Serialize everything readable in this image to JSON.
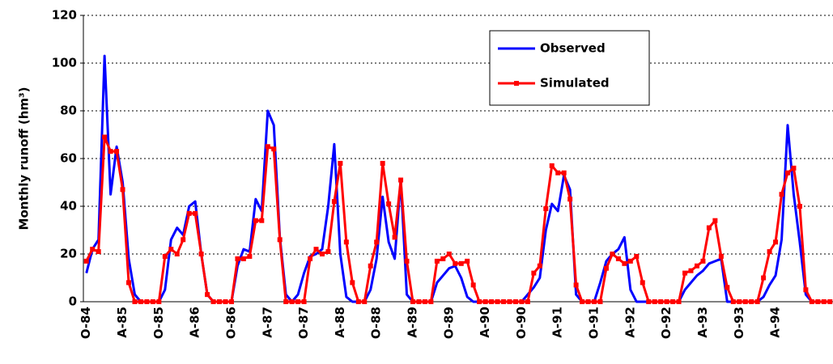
{
  "chart_data": {
    "type": "line",
    "y_label": "Monthly runoff (hm³)",
    "categories": [
      "O-84",
      null,
      null,
      null,
      null,
      null,
      "A-85",
      null,
      null,
      null,
      null,
      null,
      "O-85",
      null,
      null,
      null,
      null,
      null,
      "A-86",
      null,
      null,
      null,
      null,
      null,
      "O-86",
      null,
      null,
      null,
      null,
      null,
      "A-87",
      null,
      null,
      null,
      null,
      null,
      "O-87",
      null,
      null,
      null,
      null,
      null,
      "A-88",
      null,
      null,
      null,
      null,
      null,
      "O-88",
      null,
      null,
      null,
      null,
      null,
      "A-89",
      null,
      null,
      null,
      null,
      null,
      "O-89",
      null,
      null,
      null,
      null,
      null,
      "A-90",
      null,
      null,
      null,
      null,
      null,
      "O-90",
      null,
      null,
      null,
      null,
      null,
      "A-91",
      null,
      null,
      null,
      null,
      null,
      "O-91",
      null,
      null,
      null,
      null,
      null,
      "A-92",
      null,
      null,
      null,
      null,
      null,
      "O-92",
      null,
      null,
      null,
      null,
      null,
      "A-93",
      null,
      null,
      null,
      null,
      null,
      "O-93",
      null,
      null,
      null,
      null,
      null,
      "A-94",
      null,
      null,
      null,
      null,
      null,
      null,
      null,
      null,
      null
    ],
    "series": [
      {
        "name": "Observed",
        "color": "#0000ff",
        "marker": "none",
        "values": [
          12,
          22,
          26,
          103,
          45,
          65,
          50,
          18,
          3,
          0,
          0,
          0,
          0,
          5,
          26,
          31,
          28,
          40,
          42,
          20,
          3,
          0,
          0,
          0,
          0,
          15,
          22,
          21,
          43,
          38,
          80,
          74,
          27,
          3,
          0,
          3,
          12,
          19,
          20,
          22,
          40,
          66,
          20,
          2,
          0,
          0,
          0,
          5,
          18,
          44,
          25,
          18,
          51,
          3,
          0,
          0,
          0,
          0,
          8,
          11,
          14,
          15,
          10,
          2,
          0,
          0,
          0,
          0,
          0,
          0,
          0,
          0,
          0,
          3,
          6,
          10,
          30,
          41,
          38,
          53,
          47,
          3,
          0,
          0,
          0,
          8,
          17,
          20,
          22,
          27,
          5,
          0,
          0,
          0,
          0,
          0,
          0,
          0,
          0,
          5,
          8,
          11,
          13,
          16,
          17,
          18,
          0,
          0,
          0,
          0,
          0,
          0,
          2,
          7,
          11,
          26,
          74,
          45,
          25,
          3,
          0,
          0,
          0,
          0
        ]
      },
      {
        "name": "Simulated",
        "color": "#ff0000",
        "marker": "square",
        "values": [
          17,
          22,
          21,
          69,
          63,
          63,
          47,
          8,
          0,
          0,
          0,
          0,
          0,
          19,
          22,
          20,
          26,
          37,
          37,
          20,
          3,
          0,
          0,
          0,
          0,
          18,
          18,
          19,
          34,
          34,
          65,
          64,
          26,
          0,
          0,
          0,
          0,
          18,
          22,
          20,
          21,
          42,
          58,
          25,
          8,
          0,
          0,
          15,
          25,
          58,
          41,
          27,
          51,
          17,
          0,
          0,
          0,
          0,
          17,
          18,
          20,
          16,
          16,
          17,
          7,
          0,
          0,
          0,
          0,
          0,
          0,
          0,
          0,
          0,
          12,
          15,
          39,
          57,
          54,
          54,
          43,
          7,
          0,
          0,
          0,
          0,
          14,
          20,
          18,
          16,
          17,
          19,
          8,
          0,
          0,
          0,
          0,
          0,
          0,
          12,
          13,
          15,
          17,
          31,
          34,
          19,
          6,
          0,
          0,
          0,
          0,
          0,
          10,
          21,
          25,
          45,
          54,
          56,
          40,
          5,
          0,
          0,
          0,
          0
        ]
      }
    ],
    "ylim": [
      0,
      120
    ],
    "yticks": [
      0,
      20,
      40,
      60,
      80,
      100,
      120
    ],
    "grid": true,
    "legend": "top-right"
  }
}
